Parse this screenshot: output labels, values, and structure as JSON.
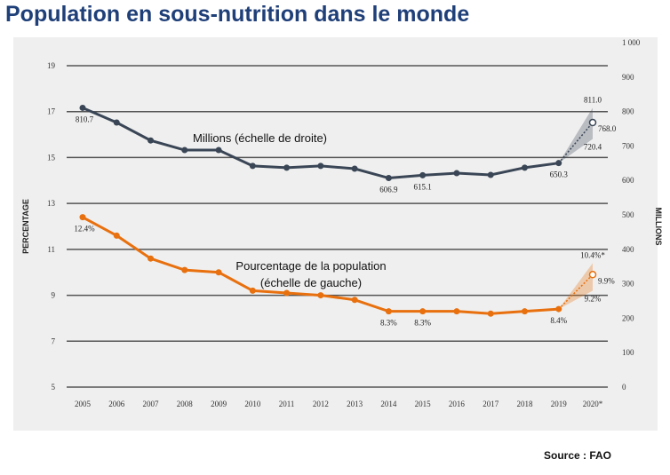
{
  "chart_data": {
    "type": "line",
    "title": "Population en sous-nutrition dans le monde",
    "source": "Source : FAO",
    "x": [
      "2005",
      "2006",
      "2007",
      "2008",
      "2009",
      "2010",
      "2011",
      "2012",
      "2013",
      "2014",
      "2015",
      "2016",
      "2017",
      "2018",
      "2019",
      "2020*"
    ],
    "ylabel_left": "PERCENTAGE",
    "ylabel_right": "MILLIONS",
    "ylim_left": [
      5,
      19
    ],
    "yticks_left": [
      "5",
      "7",
      "9",
      "11",
      "13",
      "15",
      "17",
      "19"
    ],
    "ylim_right": [
      0,
      1000
    ],
    "yticks_right": [
      "0",
      "100",
      "200",
      "300",
      "400",
      "500",
      "600",
      "700",
      "800",
      "900",
      "1 000"
    ],
    "grid": true,
    "series": [
      {
        "name": "Millions (échelle de droite)",
        "axis": "right",
        "color": "#3a4656",
        "values": [
          810.7,
          768,
          716,
          688,
          688,
          642,
          637,
          642,
          634,
          606.9,
          615.1,
          621,
          616,
          637,
          650.3,
          768.0
        ],
        "projection_range": [
          720.4,
          811.0
        ],
        "labels": [
          {
            "i": 0,
            "t": "810.7"
          },
          {
            "i": 9,
            "t": "606.9"
          },
          {
            "i": 10,
            "t": "615.1"
          },
          {
            "i": 14,
            "t": "650.3"
          }
        ],
        "proj_labels": {
          "high": "811.0",
          "mid": "768.0",
          "low": "720.4"
        }
      },
      {
        "name": "Pourcentage de la population",
        "name2": "(échelle de gauche)",
        "axis": "left",
        "color": "#e8700e",
        "values": [
          12.4,
          11.6,
          10.6,
          10.1,
          10.0,
          9.2,
          9.1,
          9.0,
          8.8,
          8.3,
          8.3,
          8.3,
          8.2,
          8.3,
          8.4,
          9.9
        ],
        "projection_range": [
          9.2,
          10.4
        ],
        "labels": [
          {
            "i": 0,
            "t": "12.4%"
          },
          {
            "i": 9,
            "t": "8.3%"
          },
          {
            "i": 10,
            "t": "8.3%"
          },
          {
            "i": 14,
            "t": "8.4%"
          }
        ],
        "proj_labels": {
          "high": "10.4%*",
          "mid": "9.9%",
          "low": "9.2%"
        }
      }
    ]
  }
}
